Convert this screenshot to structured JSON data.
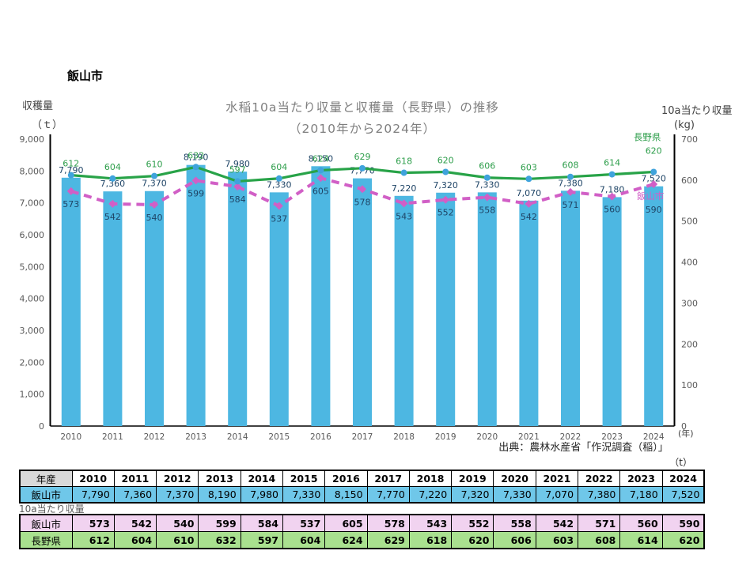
{
  "page": {
    "heading": "飯山市",
    "source": "出典：農林水産省「作況調査（稲）」",
    "table_unit_label": "（t）",
    "between_tables_label": "10a当たり収量"
  },
  "chart_data": {
    "type": "combo-bar-line",
    "title_line1": "水稲10a当たり収量と収穫量（長野県）の推移",
    "title_line2": "（2010年から2024年）",
    "left_axis": {
      "title_line1": "収穫量",
      "title_line2": "（ｔ）",
      "max": 9000,
      "step": 1000,
      "tick_labels": [
        "9,000",
        "8,000",
        "7,000",
        "6,000",
        "5,000",
        "4,000",
        "3,000",
        "2,000",
        "1,000",
        "0"
      ],
      "tick_color": "#595959"
    },
    "right_axis": {
      "title_line1": "10a当たり収量",
      "title_line2": "(kg)",
      "max": 700,
      "step": 100,
      "tick_labels": [
        "700",
        "600",
        "500",
        "400",
        "300",
        "200",
        "100",
        "0"
      ],
      "tick_color": "#595959"
    },
    "x_axis": {
      "unit_label": "(年)",
      "categories": [
        "2010",
        "2011",
        "2012",
        "2013",
        "2014",
        "2015",
        "2016",
        "2017",
        "2018",
        "2019",
        "2020",
        "2021",
        "2022",
        "2023",
        "2024"
      ],
      "tick_color": "#595959"
    },
    "bar_series": {
      "name": "飯山市",
      "axis": "left",
      "color": "#4DB7E2",
      "label_color": "#1E4466",
      "values": [
        7790,
        7360,
        7370,
        8190,
        7980,
        7330,
        8150,
        7770,
        7220,
        7320,
        7330,
        7070,
        7380,
        7180,
        7520
      ]
    },
    "line_series": [
      {
        "name": "長野県",
        "axis": "right",
        "color": "#28A348",
        "marker_color": "#3FA3DC",
        "label_color": "#2E9E4B",
        "dash": false,
        "values": [
          612,
          604,
          610,
          632,
          597,
          604,
          624,
          629,
          618,
          620,
          606,
          603,
          608,
          614,
          620
        ]
      },
      {
        "name": "飯山市",
        "axis": "right",
        "color": "#D15FC6",
        "marker_color": "#D15FC6",
        "label_color": "#1E4466",
        "dash": true,
        "values": [
          573,
          542,
          540,
          599,
          584,
          537,
          605,
          578,
          543,
          552,
          558,
          542,
          571,
          560,
          590
        ]
      }
    ]
  },
  "tables": {
    "harvest": {
      "corner_label": "年産",
      "corner_bg": "#D9D9D9",
      "years": [
        "2010",
        "2011",
        "2012",
        "2013",
        "2014",
        "2015",
        "2016",
        "2017",
        "2018",
        "2019",
        "2020",
        "2021",
        "2022",
        "2023",
        "2024"
      ],
      "row_label": "飯山市",
      "row_bg": "#6FC7E9",
      "values": [
        "7,790",
        "7,360",
        "7,370",
        "8,190",
        "7,980",
        "7,330",
        "8,150",
        "7,770",
        "7,220",
        "7,320",
        "7,330",
        "7,070",
        "7,380",
        "7,180",
        "7,520"
      ]
    },
    "yield": {
      "rows": [
        {
          "label": "飯山市",
          "bg": "#F1D3F0",
          "values": [
            "573",
            "542",
            "540",
            "599",
            "584",
            "537",
            "605",
            "578",
            "543",
            "552",
            "558",
            "542",
            "571",
            "560",
            "590"
          ]
        },
        {
          "label": "長野県",
          "bg": "#A9E08F",
          "values": [
            "612",
            "604",
            "610",
            "632",
            "597",
            "604",
            "624",
            "629",
            "618",
            "620",
            "606",
            "603",
            "608",
            "614",
            "620"
          ]
        }
      ]
    }
  }
}
